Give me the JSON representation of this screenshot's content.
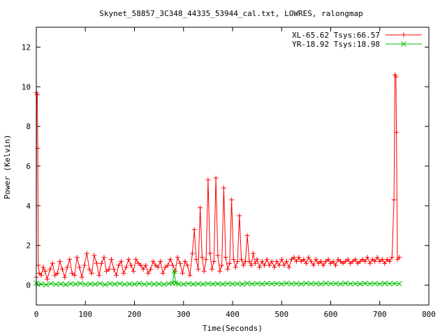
{
  "chart_data": {
    "type": "line",
    "title": "Skynet_58857_3C348_44335_53944_cal.txt, LOWRES, ralongmap",
    "xlabel": "Time(Seconds)",
    "ylabel": "Power (Kelvin)",
    "xlim": [
      0,
      800
    ],
    "ylim": [
      -1,
      13
    ],
    "xticks": [
      0,
      100,
      200,
      300,
      400,
      500,
      600,
      700,
      800
    ],
    "yticks": [
      0,
      2,
      4,
      6,
      8,
      10,
      12
    ],
    "grid": false,
    "legend_position": "top-right",
    "series": [
      {
        "name": "XL-65.62 Tsys:66.57",
        "color": "#ff0000",
        "marker": "plus",
        "points": [
          [
            0,
            0.4
          ],
          [
            0.5,
            9.7
          ],
          [
            2,
            9.6
          ],
          [
            3,
            6.9
          ],
          [
            4,
            1.0
          ],
          [
            6,
            0.6
          ],
          [
            10,
            0.5
          ],
          [
            14,
            0.9
          ],
          [
            18,
            0.7
          ],
          [
            22,
            0.3
          ],
          [
            28,
            0.8
          ],
          [
            33,
            1.1
          ],
          [
            38,
            0.5
          ],
          [
            43,
            0.6
          ],
          [
            48,
            1.2
          ],
          [
            53,
            0.8
          ],
          [
            58,
            0.4
          ],
          [
            63,
            0.9
          ],
          [
            68,
            1.3
          ],
          [
            73,
            0.6
          ],
          [
            78,
            0.5
          ],
          [
            83,
            1.4
          ],
          [
            88,
            0.9
          ],
          [
            93,
            0.4
          ],
          [
            98,
            1.0
          ],
          [
            103,
            1.6
          ],
          [
            108,
            0.8
          ],
          [
            113,
            0.6
          ],
          [
            118,
            1.5
          ],
          [
            123,
            1.1
          ],
          [
            128,
            0.5
          ],
          [
            133,
            1.1
          ],
          [
            138,
            1.4
          ],
          [
            143,
            0.7
          ],
          [
            148,
            0.8
          ],
          [
            153,
            1.3
          ],
          [
            158,
            0.8
          ],
          [
            163,
            0.5
          ],
          [
            168,
            1.0
          ],
          [
            173,
            1.2
          ],
          [
            178,
            0.6
          ],
          [
            183,
            0.9
          ],
          [
            188,
            1.3
          ],
          [
            193,
            1.0
          ],
          [
            198,
            0.7
          ],
          [
            203,
            1.3
          ],
          [
            208,
            1.1
          ],
          [
            213,
            1.0
          ],
          [
            218,
            0.8
          ],
          [
            223,
            1.0
          ],
          [
            228,
            0.6
          ],
          [
            233,
            0.8
          ],
          [
            238,
            1.2
          ],
          [
            243,
            1.0
          ],
          [
            248,
            0.9
          ],
          [
            253,
            1.2
          ],
          [
            258,
            0.6
          ],
          [
            263,
            0.9
          ],
          [
            268,
            1.0
          ],
          [
            273,
            1.3
          ],
          [
            278,
            1.0
          ],
          [
            283,
            0.7
          ],
          [
            288,
            1.4
          ],
          [
            293,
            1.1
          ],
          [
            298,
            0.6
          ],
          [
            303,
            1.2
          ],
          [
            308,
            1.0
          ],
          [
            313,
            0.5
          ],
          [
            318,
            1.6
          ],
          [
            322,
            2.8
          ],
          [
            326,
            1.3
          ],
          [
            330,
            0.8
          ],
          [
            334,
            3.9
          ],
          [
            338,
            1.4
          ],
          [
            342,
            0.7
          ],
          [
            346,
            1.3
          ],
          [
            350,
            5.3
          ],
          [
            354,
            1.6
          ],
          [
            358,
            0.8
          ],
          [
            362,
            1.2
          ],
          [
            366,
            5.4
          ],
          [
            370,
            1.5
          ],
          [
            374,
            0.7
          ],
          [
            378,
            1.0
          ],
          [
            382,
            4.9
          ],
          [
            386,
            1.4
          ],
          [
            390,
            0.8
          ],
          [
            394,
            1.1
          ],
          [
            398,
            4.3
          ],
          [
            402,
            1.3
          ],
          [
            406,
            0.9
          ],
          [
            410,
            1.2
          ],
          [
            414,
            3.5
          ],
          [
            418,
            1.3
          ],
          [
            422,
            1.0
          ],
          [
            426,
            1.2
          ],
          [
            430,
            2.5
          ],
          [
            434,
            1.2
          ],
          [
            438,
            1.0
          ],
          [
            442,
            1.6
          ],
          [
            446,
            1.1
          ],
          [
            450,
            1.3
          ],
          [
            455,
            0.9
          ],
          [
            460,
            1.2
          ],
          [
            465,
            1.0
          ],
          [
            470,
            1.3
          ],
          [
            475,
            1.0
          ],
          [
            480,
            1.2
          ],
          [
            485,
            0.9
          ],
          [
            490,
            1.2
          ],
          [
            495,
            1.0
          ],
          [
            500,
            1.3
          ],
          [
            505,
            1.0
          ],
          [
            510,
            1.2
          ],
          [
            515,
            0.9
          ],
          [
            520,
            1.3
          ],
          [
            525,
            1.4
          ],
          [
            530,
            1.2
          ],
          [
            535,
            1.4
          ],
          [
            540,
            1.2
          ],
          [
            545,
            1.3
          ],
          [
            550,
            1.1
          ],
          [
            555,
            1.4
          ],
          [
            560,
            1.2
          ],
          [
            565,
            1.0
          ],
          [
            570,
            1.3
          ],
          [
            575,
            1.1
          ],
          [
            580,
            1.2
          ],
          [
            585,
            1.0
          ],
          [
            590,
            1.2
          ],
          [
            595,
            1.3
          ],
          [
            600,
            1.1
          ],
          [
            605,
            1.2
          ],
          [
            610,
            1.0
          ],
          [
            615,
            1.3
          ],
          [
            620,
            1.2
          ],
          [
            625,
            1.1
          ],
          [
            630,
            1.2
          ],
          [
            635,
            1.3
          ],
          [
            640,
            1.1
          ],
          [
            645,
            1.2
          ],
          [
            650,
            1.3
          ],
          [
            655,
            1.1
          ],
          [
            660,
            1.2
          ],
          [
            665,
            1.3
          ],
          [
            670,
            1.2
          ],
          [
            675,
            1.4
          ],
          [
            680,
            1.1
          ],
          [
            685,
            1.3
          ],
          [
            690,
            1.2
          ],
          [
            695,
            1.4
          ],
          [
            700,
            1.2
          ],
          [
            705,
            1.3
          ],
          [
            710,
            1.1
          ],
          [
            715,
            1.3
          ],
          [
            720,
            1.2
          ],
          [
            725,
            1.4
          ],
          [
            729,
            4.3
          ],
          [
            731,
            10.6
          ],
          [
            733,
            10.5
          ],
          [
            734,
            7.7
          ],
          [
            736,
            1.3
          ],
          [
            740,
            1.4
          ]
        ]
      },
      {
        "name": "YR-18.92 Tsys:18.98",
        "color": "#00c000",
        "marker": "cross",
        "points": [
          [
            0,
            0.1
          ],
          [
            10,
            0.05
          ],
          [
            20,
            0.02
          ],
          [
            30,
            0.08
          ],
          [
            40,
            0.04
          ],
          [
            50,
            0.06
          ],
          [
            60,
            0.03
          ],
          [
            70,
            0.07
          ],
          [
            80,
            0.05
          ],
          [
            90,
            0.09
          ],
          [
            100,
            0.04
          ],
          [
            110,
            0.06
          ],
          [
            120,
            0.05
          ],
          [
            130,
            0.08
          ],
          [
            140,
            0.03
          ],
          [
            150,
            0.07
          ],
          [
            160,
            0.05
          ],
          [
            170,
            0.08
          ],
          [
            180,
            0.04
          ],
          [
            190,
            0.06
          ],
          [
            200,
            0.05
          ],
          [
            210,
            0.09
          ],
          [
            220,
            0.04
          ],
          [
            230,
            0.07
          ],
          [
            240,
            0.05
          ],
          [
            250,
            0.06
          ],
          [
            260,
            0.04
          ],
          [
            270,
            0.08
          ],
          [
            278,
            0.1
          ],
          [
            281,
            0.7
          ],
          [
            284,
            0.1
          ],
          [
            290,
            0.06
          ],
          [
            300,
            0.05
          ],
          [
            310,
            0.08
          ],
          [
            320,
            0.05
          ],
          [
            330,
            0.07
          ],
          [
            340,
            0.05
          ],
          [
            350,
            0.08
          ],
          [
            360,
            0.06
          ],
          [
            370,
            0.07
          ],
          [
            380,
            0.05
          ],
          [
            390,
            0.08
          ],
          [
            400,
            0.06
          ],
          [
            410,
            0.07
          ],
          [
            420,
            0.05
          ],
          [
            430,
            0.09
          ],
          [
            440,
            0.06
          ],
          [
            450,
            0.08
          ],
          [
            460,
            0.06
          ],
          [
            470,
            0.09
          ],
          [
            480,
            0.07
          ],
          [
            490,
            0.08
          ],
          [
            500,
            0.06
          ],
          [
            510,
            0.09
          ],
          [
            520,
            0.07
          ],
          [
            530,
            0.08
          ],
          [
            540,
            0.06
          ],
          [
            550,
            0.09
          ],
          [
            560,
            0.07
          ],
          [
            570,
            0.08
          ],
          [
            580,
            0.06
          ],
          [
            590,
            0.09
          ],
          [
            600,
            0.07
          ],
          [
            610,
            0.08
          ],
          [
            620,
            0.06
          ],
          [
            630,
            0.09
          ],
          [
            640,
            0.07
          ],
          [
            650,
            0.08
          ],
          [
            660,
            0.06
          ],
          [
            670,
            0.09
          ],
          [
            680,
            0.07
          ],
          [
            690,
            0.08
          ],
          [
            700,
            0.06
          ],
          [
            710,
            0.09
          ],
          [
            720,
            0.07
          ],
          [
            730,
            0.08
          ],
          [
            740,
            0.07
          ]
        ]
      }
    ]
  }
}
